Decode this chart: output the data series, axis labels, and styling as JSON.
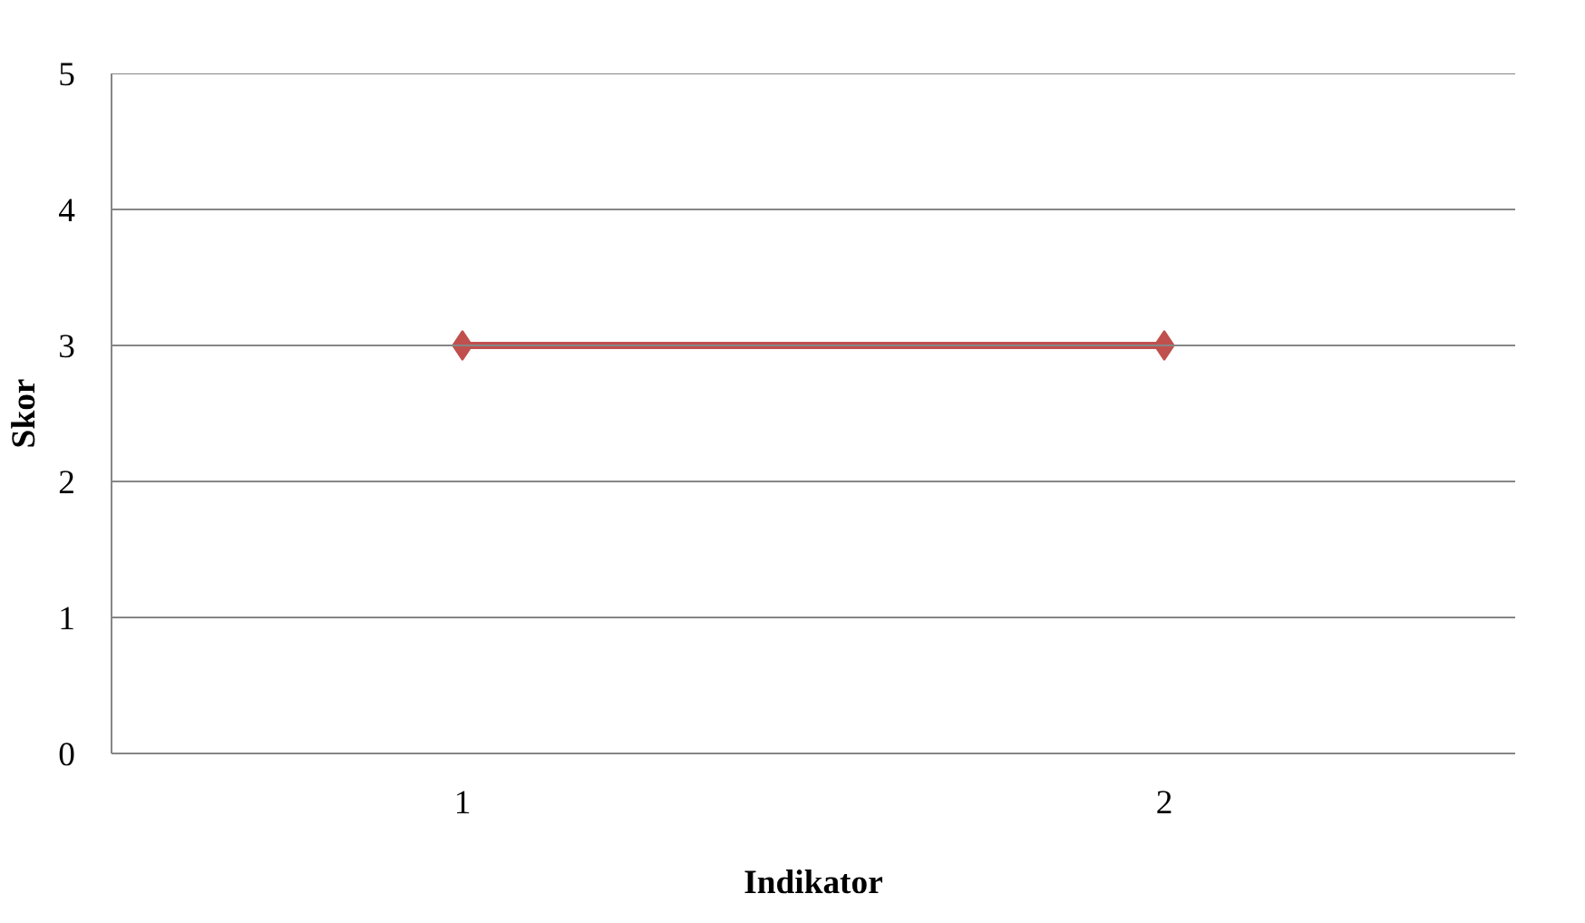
{
  "chart_data": {
    "type": "line",
    "xlabel": "Indikator",
    "ylabel": "Skor",
    "categories": [
      "1",
      "2"
    ],
    "series": [
      {
        "color": "#c0504d",
        "values": [
          3,
          3
        ]
      }
    ],
    "ylim": [
      0,
      5
    ],
    "yticks": [
      0,
      1,
      2,
      3,
      4,
      5
    ],
    "grid": "y",
    "marker": "diamond",
    "line_style": "solid"
  }
}
